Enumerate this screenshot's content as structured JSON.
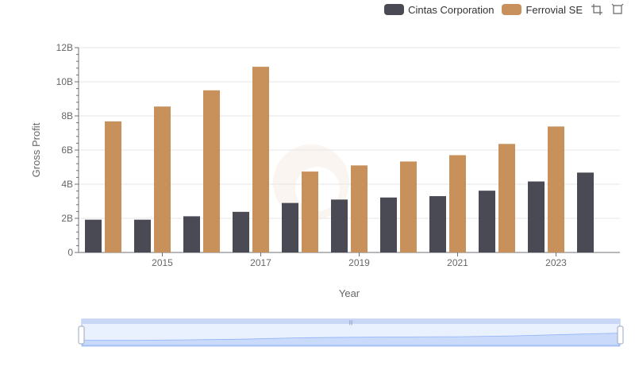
{
  "legend": {
    "items": [
      {
        "label": "Cintas Corporation",
        "color": "#4a4a55"
      },
      {
        "label": "Ferrovial SE",
        "color": "#c8915c"
      }
    ],
    "icons": [
      "zoom-icon",
      "restore-icon"
    ]
  },
  "chart_data": {
    "type": "bar",
    "xlabel": "Year",
    "ylabel": "Gross Profit",
    "categories": [
      "2014",
      "2015",
      "2016",
      "2017",
      "2018",
      "2019",
      "2020",
      "2021",
      "2022",
      "2023",
      "2024"
    ],
    "x_tick_labels": [
      "2015",
      "2017",
      "2019",
      "2021",
      "2023"
    ],
    "y_ticks": [
      0,
      2,
      4,
      6,
      8,
      10,
      12
    ],
    "y_tick_labels": [
      "0",
      "2B",
      "4B",
      "6B",
      "8B",
      "10B",
      "12B"
    ],
    "ylim": [
      0,
      12
    ],
    "y_unit": "B",
    "grid": true,
    "legend_position": "top-right",
    "series": [
      {
        "name": "Cintas Corporation",
        "color": "#4a4a55",
        "values": [
          1.92,
          1.92,
          2.12,
          2.38,
          2.9,
          3.1,
          3.22,
          3.3,
          3.62,
          4.16,
          4.68
        ]
      },
      {
        "name": "Ferrovial SE",
        "color": "#c8915c",
        "values": [
          7.68,
          8.55,
          9.5,
          10.88,
          4.74,
          5.1,
          5.33,
          5.7,
          6.36,
          7.38,
          null
        ]
      }
    ],
    "data_zoom": {
      "start": 0,
      "end": 100
    }
  }
}
